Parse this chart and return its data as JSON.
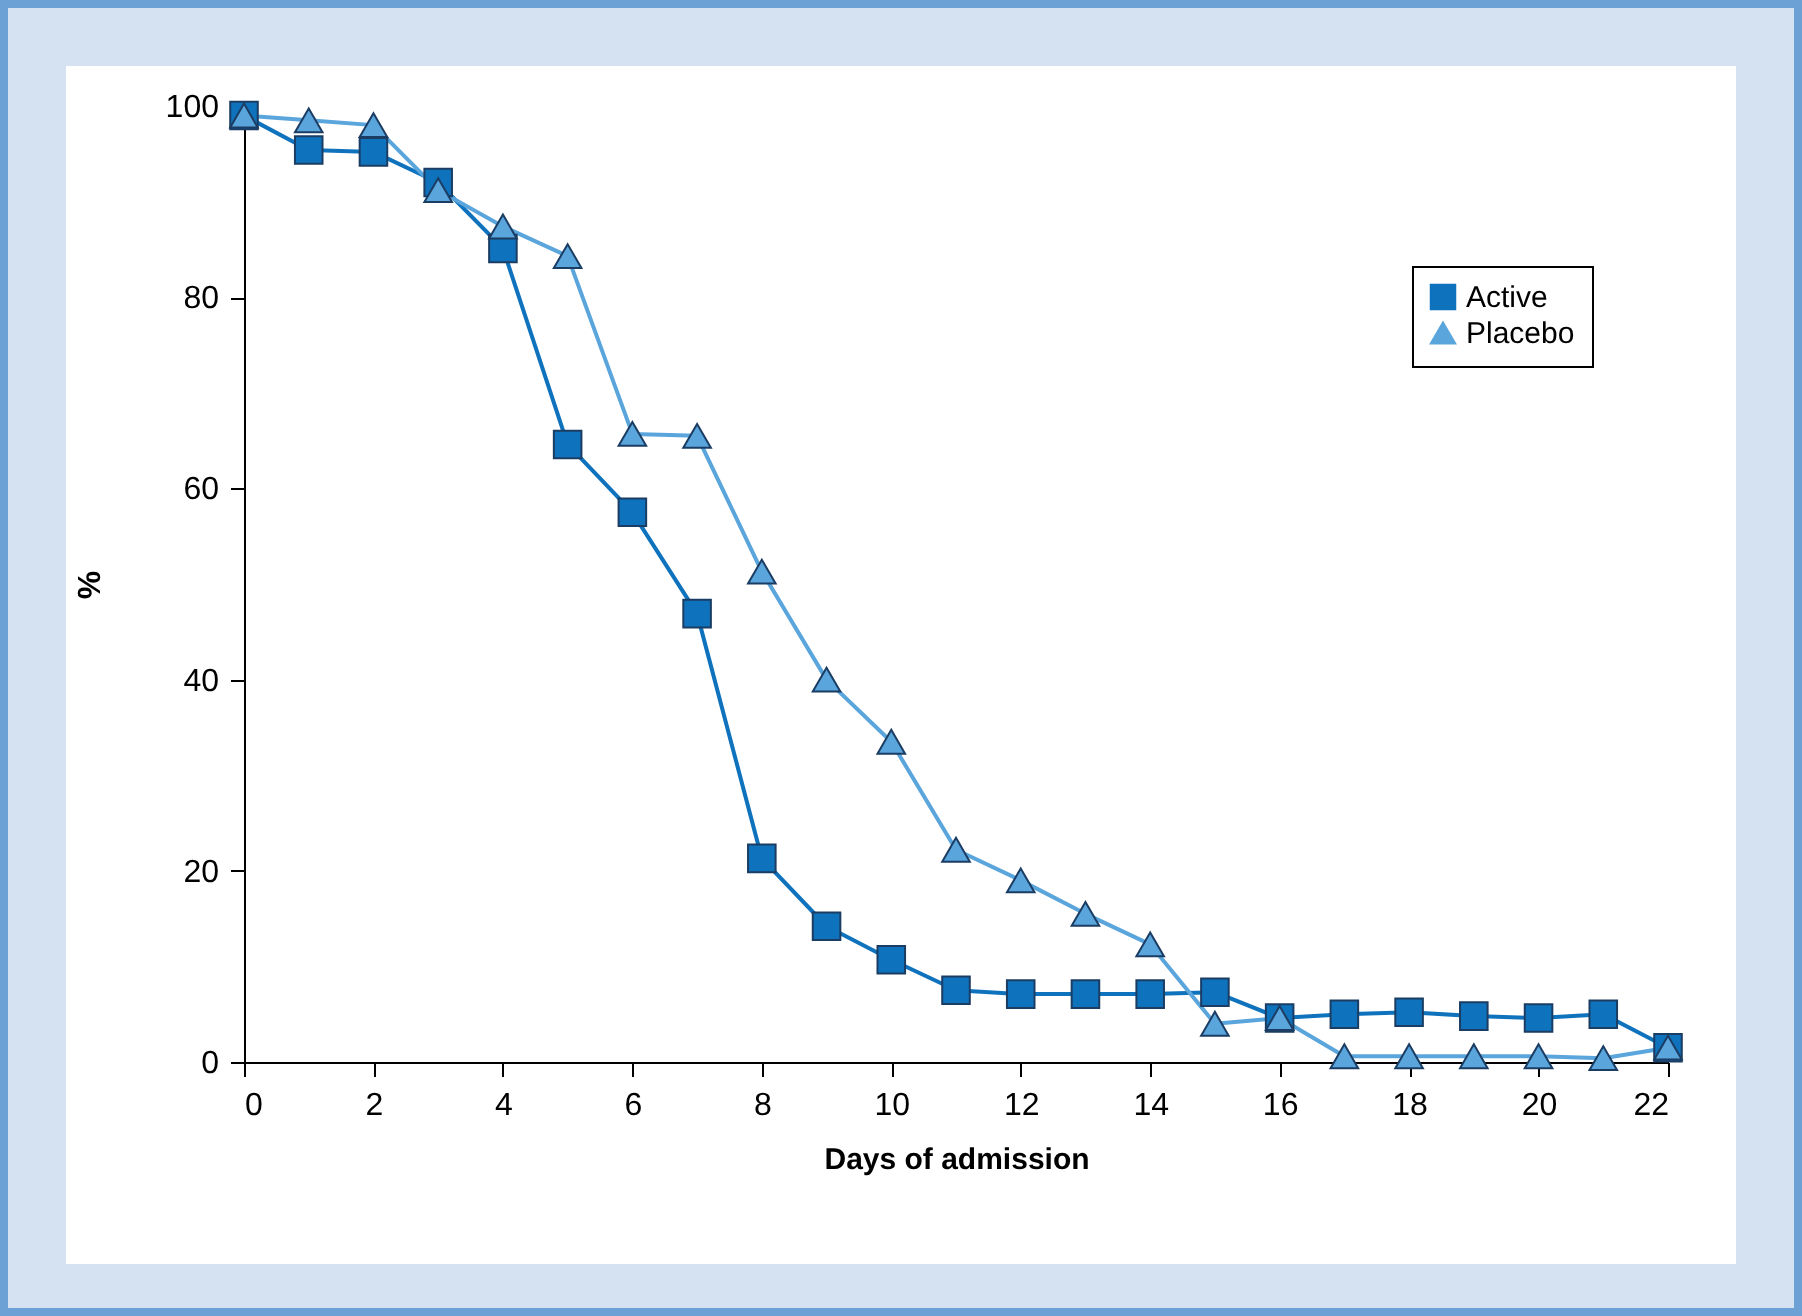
{
  "chart_data": {
    "type": "line",
    "xlabel": "Days of admission",
    "ylabel": "%",
    "x": [
      0,
      1,
      2,
      3,
      4,
      5,
      6,
      7,
      8,
      9,
      10,
      11,
      12,
      13,
      14,
      15,
      16,
      17,
      18,
      19,
      20,
      21,
      22
    ],
    "xlim": [
      0,
      22
    ],
    "xticks": [
      0,
      2,
      4,
      6,
      8,
      10,
      12,
      14,
      16,
      18,
      20,
      22
    ],
    "ylim": [
      0,
      100
    ],
    "yticks": [
      0,
      20,
      40,
      60,
      80,
      100
    ],
    "grid": false,
    "legend": "top right",
    "line_style": "solid",
    "series": [
      {
        "name": "Active",
        "color": "#0f72bd",
        "marker": "square",
        "values": [
          99,
          95.4,
          95.2,
          92,
          85.1,
          64.6,
          57.5,
          46.9,
          21.3,
          14.2,
          10.7,
          7.5,
          7.1,
          7.1,
          7.1,
          7.3,
          4.6,
          5.0,
          5.2,
          4.8,
          4.6,
          5.0,
          1.5
        ]
      },
      {
        "name": "Placebo",
        "color": "#5aa5dc",
        "marker": "triangle",
        "values": [
          99,
          98.5,
          98,
          91.2,
          87.4,
          84.3,
          65.7,
          65.5,
          51.3,
          40,
          33.5,
          22.2,
          19,
          15.5,
          12.3,
          4,
          4.6,
          0.6,
          0.6,
          0.6,
          0.6,
          0.4,
          1.5
        ]
      }
    ]
  }
}
